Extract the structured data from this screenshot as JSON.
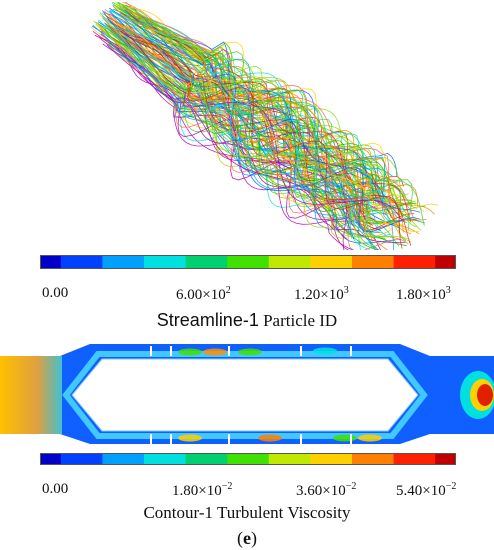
{
  "streamline": {
    "colorbar": {
      "ticks": [
        "0.00",
        "6.00×10²",
        "1.20×10³",
        "1.80×10³"
      ],
      "caption_a": "Streamline-1",
      "caption_b": " Particle  ID",
      "range": [
        0,
        1800
      ]
    }
  },
  "contour": {
    "colorbar": {
      "ticks": [
        "0.00",
        "1.80×10⁻²",
        "3.60×10⁻²",
        "5.40×10⁻²"
      ],
      "caption": "Contour-1 Turbulent Viscosity",
      "range": [
        0,
        0.054
      ]
    }
  },
  "panel_label": "(e)",
  "colormap": [
    "#0000c8",
    "#0040ff",
    "#00a0ff",
    "#00e0e0",
    "#00d070",
    "#40e000",
    "#c0e800",
    "#ffd000",
    "#ff8000",
    "#ff2000",
    "#c00000"
  ]
}
